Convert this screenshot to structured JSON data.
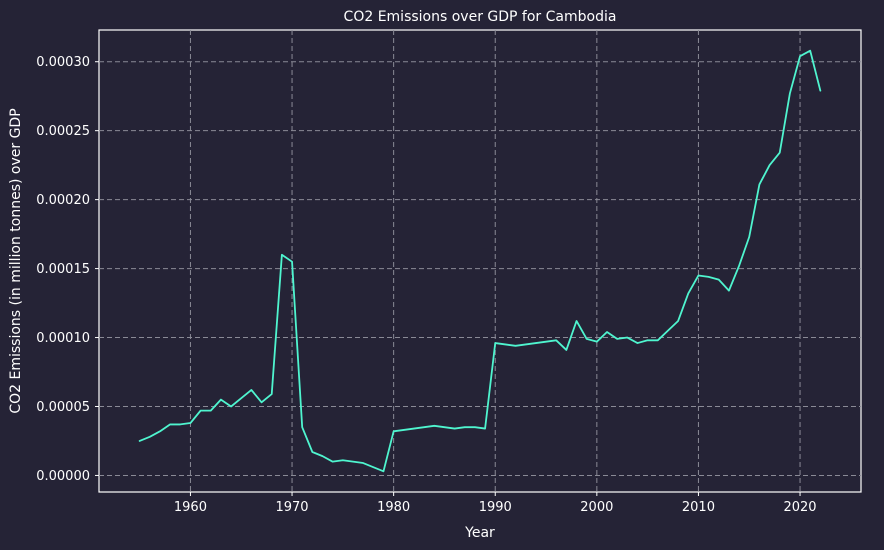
{
  "chart_data": {
    "type": "line",
    "title": "CO2 Emissions over GDP for Cambodia",
    "xlabel": "Year",
    "ylabel": "CO2 Emissions (in million tonnes) over GDP",
    "xlim": [
      1951,
      2026
    ],
    "ylim": [
      -1.2e-05,
      0.000323
    ],
    "x_ticks": [
      1960,
      1970,
      1980,
      1990,
      2000,
      2010,
      2020
    ],
    "x_tick_labels": [
      "1960",
      "1970",
      "1980",
      "1990",
      "2000",
      "2010",
      "2020"
    ],
    "y_ticks": [
      0,
      5e-05,
      0.0001,
      0.00015,
      0.0002,
      0.00025,
      0.0003
    ],
    "y_tick_labels": [
      "0.00000",
      "0.00005",
      "0.00010",
      "0.00015",
      "0.00020",
      "0.00025",
      "0.00030"
    ],
    "grid": true,
    "colors": {
      "background": "#252336",
      "line": "#4ff5cf",
      "grid": "#8a8a96",
      "text": "#ffffff"
    },
    "series": [
      {
        "x": [
          1955,
          1956,
          1957,
          1958,
          1959,
          1960,
          1961,
          1962,
          1963,
          1964,
          1965,
          1966,
          1967,
          1968,
          1969,
          1970,
          1971,
          1972,
          1973,
          1974,
          1975,
          1976,
          1977,
          1978,
          1979,
          1980,
          1981,
          1982,
          1983,
          1984,
          1985,
          1986,
          1987,
          1988,
          1989,
          1990,
          1991,
          1992,
          1993,
          1994,
          1995,
          1996,
          1997,
          1998,
          1999,
          2000,
          2001,
          2002,
          2003,
          2004,
          2005,
          2006,
          2007,
          2008,
          2009,
          2010,
          2011,
          2012,
          2013,
          2014,
          2015,
          2016,
          2017,
          2018,
          2019,
          2020,
          2021,
          2022
        ],
        "y": [
          2.5e-05,
          2.8e-05,
          3.2e-05,
          3.7e-05,
          3.7e-05,
          3.8e-05,
          4.7e-05,
          4.7e-05,
          5.5e-05,
          5e-05,
          5.6e-05,
          6.2e-05,
          5.3e-05,
          5.9e-05,
          0.00016,
          0.000155,
          3.5e-05,
          1.7e-05,
          1.4e-05,
          1e-05,
          1.1e-05,
          1e-05,
          9e-06,
          6e-06,
          3e-06,
          3.2e-05,
          3.3e-05,
          3.4e-05,
          3.5e-05,
          3.6e-05,
          3.5e-05,
          3.4e-05,
          3.5e-05,
          3.5e-05,
          3.4e-05,
          9.6e-05,
          9.5e-05,
          9.4e-05,
          9.5e-05,
          9.6e-05,
          9.7e-05,
          9.8e-05,
          9.1e-05,
          0.000112,
          9.9e-05,
          9.7e-05,
          0.000104,
          9.9e-05,
          0.0001,
          9.6e-05,
          9.8e-05,
          9.8e-05,
          0.000105,
          0.000112,
          0.000132,
          0.000145,
          0.000144,
          0.000142,
          0.000134,
          0.000152,
          0.000173,
          0.000211,
          0.000225,
          0.000234,
          0.000277,
          0.000304,
          0.000308,
          0.000279
        ]
      }
    ]
  }
}
